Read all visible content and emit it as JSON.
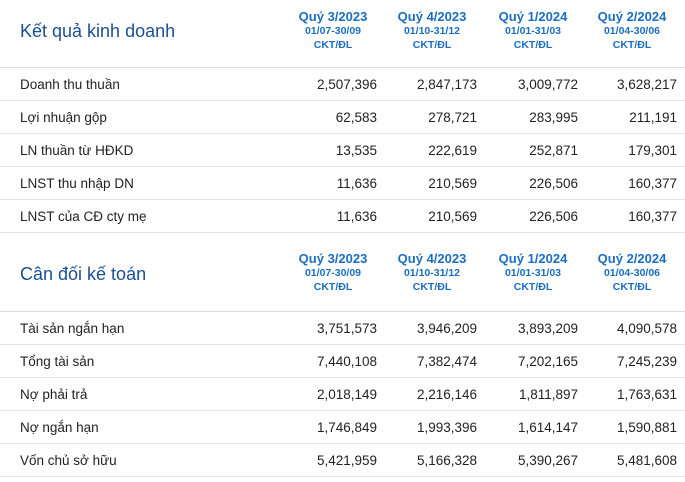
{
  "sections": [
    {
      "title": "Kết quả kinh doanh",
      "periods": [
        {
          "quarter": "Quý 3/2023",
          "dates": "01/07-30/09",
          "unit": "CKT/ĐL"
        },
        {
          "quarter": "Quý 4/2023",
          "dates": "01/10-31/12",
          "unit": "CKT/ĐL"
        },
        {
          "quarter": "Quý 1/2024",
          "dates": "01/01-31/03",
          "unit": "CKT/ĐL"
        },
        {
          "quarter": "Quý 2/2024",
          "dates": "01/04-30/06",
          "unit": "CKT/ĐL"
        }
      ],
      "rows": [
        {
          "label": "Doanh thu thuần",
          "values": [
            "2,507,396",
            "2,847,173",
            "3,009,772",
            "3,628,217"
          ]
        },
        {
          "label": "Lợi nhuận gộp",
          "values": [
            "62,583",
            "278,721",
            "283,995",
            "211,191"
          ]
        },
        {
          "label": "LN thuần từ HĐKD",
          "values": [
            "13,535",
            "222,619",
            "252,871",
            "179,301"
          ]
        },
        {
          "label": "LNST thu nhập DN",
          "values": [
            "11,636",
            "210,569",
            "226,506",
            "160,377"
          ]
        },
        {
          "label": "LNST của CĐ cty mẹ",
          "values": [
            "11,636",
            "210,569",
            "226,506",
            "160,377"
          ]
        }
      ]
    },
    {
      "title": "Cân đối kế toán",
      "periods": [
        {
          "quarter": "Quý 3/2023",
          "dates": "01/07-30/09",
          "unit": "CKT/ĐL"
        },
        {
          "quarter": "Quý 4/2023",
          "dates": "01/10-31/12",
          "unit": "CKT/ĐL"
        },
        {
          "quarter": "Quý 1/2024",
          "dates": "01/01-31/03",
          "unit": "CKT/ĐL"
        },
        {
          "quarter": "Quý 2/2024",
          "dates": "01/04-30/06",
          "unit": "CKT/ĐL"
        }
      ],
      "rows": [
        {
          "label": "Tài sản ngắn hạn",
          "values": [
            "3,751,573",
            "3,946,209",
            "3,893,209",
            "4,090,578"
          ]
        },
        {
          "label": "Tổng tài sản",
          "values": [
            "7,440,108",
            "7,382,474",
            "7,202,165",
            "7,245,239"
          ]
        },
        {
          "label": "Nợ phải trả",
          "values": [
            "2,018,149",
            "2,216,146",
            "1,811,897",
            "1,763,631"
          ]
        },
        {
          "label": "Nợ ngắn hạn",
          "values": [
            "1,746,849",
            "1,993,396",
            "1,614,147",
            "1,590,881"
          ]
        },
        {
          "label": "Vốn chủ sở hữu",
          "values": [
            "5,421,959",
            "5,166,328",
            "5,390,267",
            "5,481,608"
          ]
        }
      ]
    }
  ]
}
